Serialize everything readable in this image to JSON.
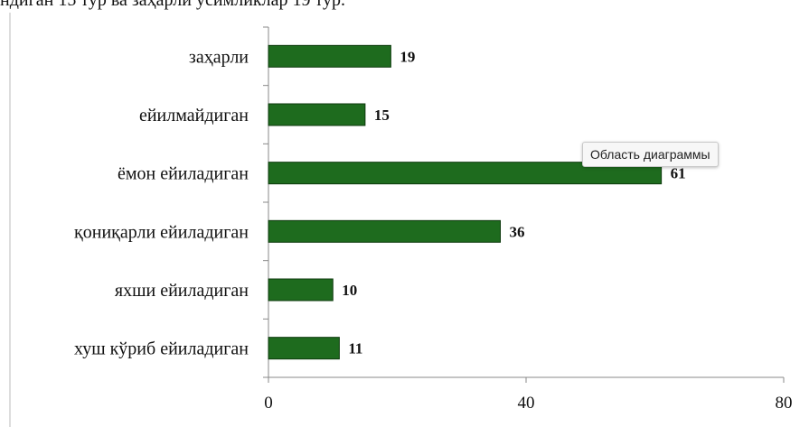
{
  "header_text": "ндиган 15 тур ва заҳарли ўсимликлар 19 тур.",
  "tooltip": "Область диаграммы",
  "colors": {
    "bar_fill": "#1e6b1e",
    "bar_stroke": "#0d3a0d",
    "axis": "#888888"
  },
  "chart_data": {
    "type": "bar",
    "orientation": "horizontal",
    "categories": [
      "заҳарли",
      "ейилмайдиган",
      "ёмон ейиладиган",
      "қониқарли ейиладиган",
      "яхши ейиладиган",
      "хуш кўриб ейиладиган"
    ],
    "values": [
      19,
      15,
      61,
      36,
      10,
      11
    ],
    "xlim": [
      0,
      80
    ],
    "xticks": [
      0,
      40,
      80
    ],
    "grid": false,
    "data_labels": true
  }
}
